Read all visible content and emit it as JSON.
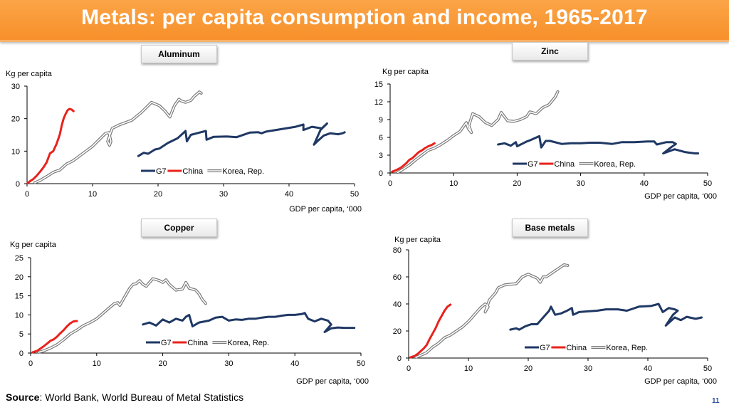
{
  "title": "Metals: per capita consumption and income, 1965-2017",
  "source_label": "Source",
  "source_text": ": World Bank, World Bureau of Metal Statistics",
  "page_number": "11",
  "colors": {
    "g7": "#1f3864",
    "china": "#e8221b",
    "korea": "#808080",
    "title_bar": "#f7902a"
  },
  "chart_data": [
    {
      "id": "aluminum",
      "type": "line",
      "label": "Aluminum",
      "ylabel": "Kg per capita",
      "xlabel": "GDP per capita, ‘000",
      "xlim": [
        0,
        50
      ],
      "ylim": [
        0,
        30
      ],
      "xticks": [
        0,
        10,
        20,
        30,
        40,
        50
      ],
      "yticks": [
        0,
        10,
        20,
        30
      ],
      "legend": [
        "G7",
        "China",
        "Korea, Rep."
      ],
      "series": [
        {
          "name": "G7",
          "x": [
            17,
            17.8,
            18.5,
            19.5,
            20.2,
            21.5,
            23,
            24.2,
            24.4,
            25,
            26.3,
            27.3,
            27.4,
            28.5,
            30.5,
            32,
            34,
            35.3,
            35.8,
            36.5,
            38,
            39.5,
            41,
            42.2,
            42.2,
            43.5,
            45,
            45.8,
            44.8,
            43.8,
            44.3,
            45.3,
            46.3,
            47.5,
            48.2,
            48.5
          ],
          "y": [
            8.5,
            9.5,
            9.2,
            10.5,
            10.8,
            12.5,
            14,
            16.2,
            13,
            15,
            15.7,
            16.2,
            13.5,
            14.4,
            14.5,
            14.3,
            15.7,
            15.8,
            15.5,
            16,
            16.5,
            17,
            17.5,
            18.2,
            16.5,
            17.5,
            17,
            18.5,
            16.5,
            12,
            13,
            14.8,
            15.5,
            15.2,
            15.5,
            15.8
          ]
        },
        {
          "name": "China",
          "x": [
            0.1,
            0.5,
            1,
            1.5,
            2,
            2.5,
            3,
            3.5,
            4,
            4.5,
            5,
            5.3,
            5.6,
            5.9,
            6.2,
            6.5,
            6.8,
            7.1
          ],
          "y": [
            0.2,
            0.8,
            1.5,
            2.5,
            3.7,
            5,
            6.6,
            9.3,
            10,
            12.2,
            15.1,
            18,
            20.1,
            21.5,
            22.6,
            23,
            22.8,
            22.3
          ]
        },
        {
          "name": "Korea, Rep.",
          "x": [
            1.2,
            2,
            3,
            4,
            5,
            6,
            7,
            8,
            9,
            10,
            11,
            12,
            12.5,
            12.8,
            12.6,
            12.3,
            13,
            14,
            16,
            17.5,
            19,
            20.2,
            21,
            21.8,
            22.5,
            23.2,
            23.5,
            24.2,
            25,
            25.5,
            26.3,
            26.6
          ],
          "y": [
            0.3,
            1,
            2.2,
            3.5,
            4.2,
            6,
            7,
            8.5,
            10,
            11.5,
            13.5,
            15.5,
            15.7,
            13,
            11.8,
            13,
            17,
            18,
            19.5,
            22,
            25,
            24,
            22.5,
            20.5,
            24,
            26,
            25.5,
            25,
            25.6,
            26.8,
            28.2,
            27.8
          ]
        }
      ]
    },
    {
      "id": "zinc",
      "type": "line",
      "label": "Zinc",
      "ylabel": "Kg per capita",
      "xlabel": "GDP per capita, ‘000",
      "xlim": [
        0,
        50
      ],
      "ylim": [
        0,
        15
      ],
      "xticks": [
        0,
        10,
        20,
        30,
        40,
        50
      ],
      "yticks": [
        0,
        3,
        6,
        9,
        12,
        15
      ],
      "legend": [
        "G7",
        "China",
        "Korea, Rep."
      ],
      "series": [
        {
          "name": "G7",
          "x": [
            17,
            18,
            19,
            19.8,
            20,
            21.5,
            22,
            23.5,
            23.8,
            24.5,
            25.2,
            27,
            28.5,
            30,
            31.5,
            33,
            35,
            36.5,
            38.5,
            40.5,
            41.6,
            42,
            43.5,
            44.5,
            45,
            44.2,
            43,
            44.8,
            46.5,
            48,
            48.5
          ],
          "y": [
            4.8,
            5,
            4.6,
            5.2,
            4.5,
            5.3,
            5.5,
            6.2,
            4.3,
            5.4,
            5.4,
            4.9,
            5,
            5,
            5.1,
            5.1,
            4.9,
            5.2,
            5.2,
            5.3,
            5.3,
            4.8,
            5.2,
            5.2,
            4.9,
            4.3,
            3.3,
            4,
            3.5,
            3.3,
            3.3
          ]
        },
        {
          "name": "China",
          "x": [
            0.3,
            1,
            1.7,
            2.5,
            3,
            3.5,
            4,
            4.5,
            5,
            5.5,
            6,
            6.5,
            7
          ],
          "y": [
            0.2,
            0.5,
            0.9,
            1.6,
            2.2,
            2.5,
            3,
            3.5,
            3.8,
            4.2,
            4.5,
            4.7,
            5
          ]
        },
        {
          "name": "Korea, Rep.",
          "x": [
            1.2,
            2,
            3,
            4,
            5,
            6,
            7,
            8,
            9,
            10,
            11,
            12,
            12.3,
            12.8,
            12.4,
            13,
            14,
            15,
            16,
            17,
            17.5,
            18.5,
            19.5,
            20.5,
            21.5,
            22,
            23,
            24,
            25,
            26,
            26.4
          ],
          "y": [
            0.1,
            0.6,
            1.3,
            2.2,
            3,
            3.8,
            4.2,
            4.8,
            5.5,
            6.3,
            7,
            8.5,
            7.5,
            6.8,
            8,
            10,
            9.5,
            8.5,
            8,
            9,
            10.2,
            8.8,
            8.7,
            9,
            9.5,
            10.3,
            10,
            11,
            11.5,
            12.8,
            13.7
          ]
        }
      ]
    },
    {
      "id": "copper",
      "type": "line",
      "label": "Copper",
      "ylabel": "Kg per capita",
      "xlabel": "GDP per capita, ‘000",
      "xlim": [
        0,
        50
      ],
      "ylim": [
        0,
        25
      ],
      "xticks": [
        0,
        10,
        20,
        30,
        40,
        50
      ],
      "yticks": [
        0,
        5,
        10,
        15,
        20,
        25
      ],
      "legend": [
        "G7",
        "China",
        "Korea, Rep."
      ],
      "series": [
        {
          "name": "G7",
          "x": [
            17,
            18,
            19,
            20,
            21,
            22,
            23,
            23.5,
            24,
            24.5,
            25.5,
            27,
            28,
            29,
            30,
            31,
            32,
            33,
            34,
            35,
            36,
            37,
            38,
            39,
            40,
            41,
            41.5,
            42,
            43,
            44,
            45,
            45.5,
            44.5,
            45.5,
            46.5,
            47.5,
            49
          ],
          "y": [
            7.5,
            8,
            7.2,
            8.8,
            8,
            9,
            8.5,
            9.5,
            10,
            7,
            8,
            8.5,
            9.3,
            9.5,
            8.5,
            8.8,
            8.7,
            9,
            9,
            9.3,
            9.5,
            9.5,
            9.8,
            10,
            10,
            10.2,
            10.5,
            9,
            8.3,
            9,
            8.5,
            7.5,
            5.5,
            6.5,
            6.7,
            6.6,
            6.6
          ]
        },
        {
          "name": "China",
          "x": [
            0.3,
            1,
            1.5,
            2,
            2.5,
            3,
            3.5,
            4,
            4.5,
            5,
            5.5,
            6,
            6.5,
            7
          ],
          "y": [
            0.2,
            0.6,
            1.2,
            1.8,
            2.5,
            3.2,
            3.6,
            4.3,
            5.2,
            6,
            7,
            7.8,
            8.3,
            8.4
          ]
        },
        {
          "name": "Korea, Rep.",
          "x": [
            1.2,
            2,
            3,
            4,
            5,
            6,
            7,
            8,
            9,
            10,
            11,
            12,
            12.7,
            13.2,
            13.5,
            14.5,
            15,
            15.5,
            16,
            16.5,
            17,
            17.5,
            18,
            18.5,
            19.5,
            20,
            20.5,
            21,
            22,
            23,
            23.5,
            24,
            25,
            25.5,
            26,
            26.5
          ],
          "y": [
            0.2,
            0.6,
            1.3,
            2.2,
            3.5,
            5,
            6,
            7.2,
            8,
            9,
            10.5,
            12,
            13,
            13.2,
            12.5,
            15.5,
            17,
            18,
            18.2,
            19,
            18,
            17.5,
            18.5,
            19.5,
            19,
            18.5,
            19.2,
            18,
            16.5,
            16.8,
            18.5,
            17,
            16.5,
            15.5,
            14,
            13
          ]
        }
      ]
    },
    {
      "id": "base-metals",
      "type": "line",
      "label": "Base metals",
      "ylabel": "Kg per capita",
      "xlabel": "GDP per capita, ‘000",
      "xlim": [
        0,
        50
      ],
      "ylim": [
        0,
        80
      ],
      "xticks": [
        0,
        10,
        20,
        30,
        40,
        50
      ],
      "yticks": [
        0,
        20,
        40,
        60,
        80
      ],
      "legend": [
        "G7",
        "China",
        "Korea, Rep."
      ],
      "series": [
        {
          "name": "G7",
          "x": [
            17,
            18,
            18.5,
            19.5,
            20.5,
            21.5,
            22.5,
            23.5,
            23.8,
            24.5,
            25.5,
            26.5,
            27.3,
            27.5,
            28.5,
            30,
            31.5,
            33,
            35,
            36.5,
            38.5,
            40.5,
            41.8,
            42.5,
            43.5,
            44.5,
            45,
            44.2,
            43,
            44.5,
            45.5,
            46.5,
            48,
            49
          ],
          "y": [
            21,
            22,
            21,
            23.5,
            25,
            25,
            30,
            35,
            38,
            32,
            33,
            35,
            37,
            32,
            34,
            34.5,
            35,
            36,
            36,
            35,
            38,
            38.5,
            40,
            34,
            37,
            36,
            35,
            32,
            24,
            30,
            28,
            30.5,
            29,
            30
          ]
        },
        {
          "name": "China",
          "x": [
            0.3,
            1,
            1.5,
            2,
            2.5,
            3,
            3.5,
            4,
            4.5,
            5,
            5.5,
            6,
            6.5,
            7
          ],
          "y": [
            0.5,
            1.5,
            3,
            5,
            7,
            9.5,
            14,
            18,
            22,
            27,
            31,
            35,
            38,
            39.5
          ]
        },
        {
          "name": "Korea, Rep.",
          "x": [
            1.2,
            2,
            3,
            4,
            5,
            6,
            7,
            8,
            9,
            10,
            11,
            12,
            12.8,
            13.3,
            12.8,
            13.5,
            14.5,
            15,
            16,
            17,
            18,
            19,
            20,
            20.5,
            21,
            21.5,
            22,
            22.5,
            23,
            24,
            25,
            26,
            26.6
          ],
          "y": [
            0.5,
            2,
            4,
            8,
            11,
            15,
            17,
            20,
            23,
            27,
            32,
            37,
            40,
            38,
            34,
            43,
            48,
            52,
            54,
            54.5,
            55,
            60,
            62,
            61,
            60,
            59,
            56,
            60,
            60,
            63,
            66,
            69,
            68.5
          ]
        }
      ]
    }
  ]
}
